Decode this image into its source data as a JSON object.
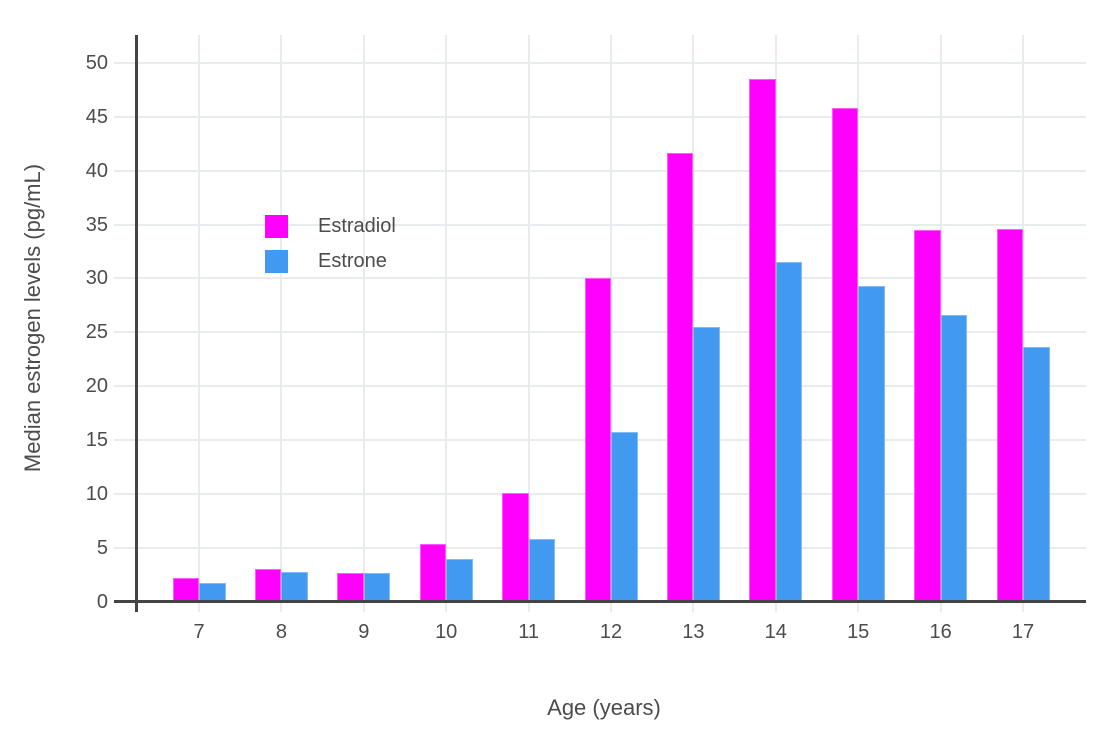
{
  "chart_data": {
    "type": "bar",
    "title": "",
    "xlabel": "Age (years)",
    "ylabel": "Median estrogen levels (pg/mL)",
    "categories": [
      7,
      8,
      9,
      10,
      11,
      12,
      13,
      14,
      15,
      16,
      17
    ],
    "series": [
      {
        "name": "Estradiol",
        "color": "#FF00FF",
        "values": [
          2.2,
          3.0,
          2.6,
          5.3,
          10.1,
          30.0,
          41.6,
          48.5,
          45.8,
          34.5,
          34.6
        ]
      },
      {
        "name": "Estrone",
        "color": "#4199F0",
        "values": [
          1.7,
          2.7,
          2.6,
          3.9,
          5.8,
          15.7,
          25.5,
          31.5,
          29.3,
          26.6,
          23.6
        ]
      }
    ],
    "ylim": [
      0,
      52.6
    ],
    "yticks": [
      0,
      5,
      10,
      15,
      20,
      25,
      30,
      35,
      40,
      45,
      50
    ],
    "grid": true,
    "legend_position": "inside-top-left",
    "bar_mode": "grouped"
  },
  "colors": {
    "axis": "#444444",
    "grid": "#E9ECEE",
    "text": "#4C4C4C",
    "background": "#FFFFFF"
  }
}
